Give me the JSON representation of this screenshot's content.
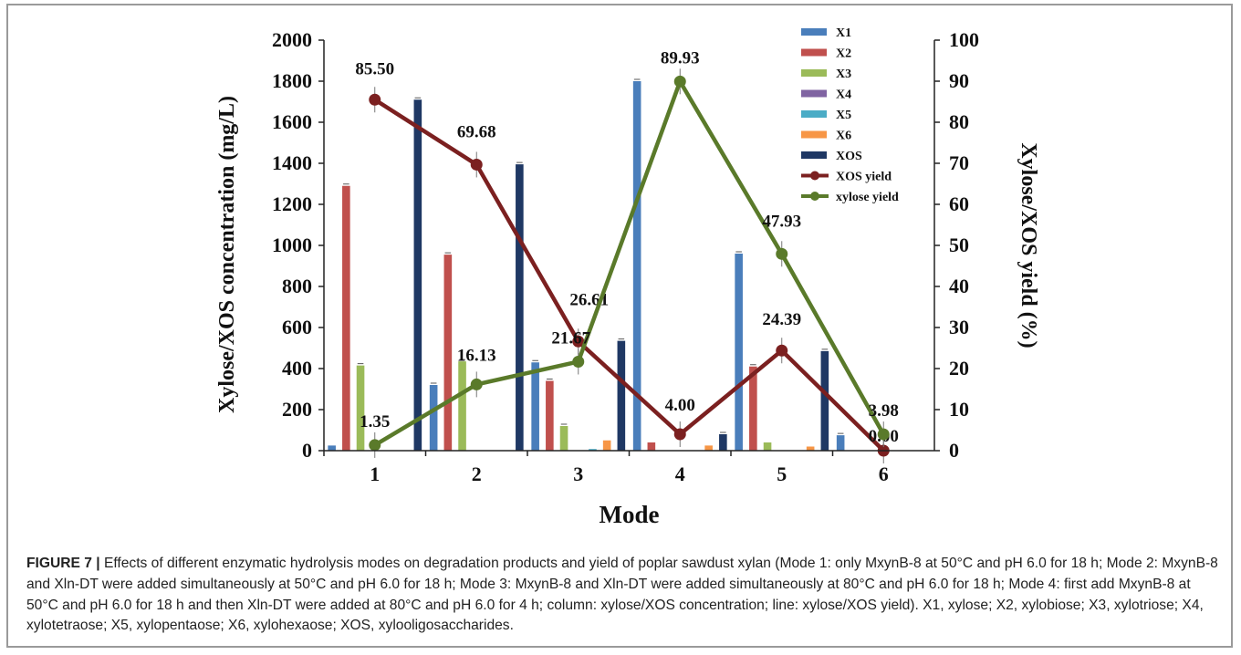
{
  "caption": {
    "label": "FIGURE 7 |",
    "text": " Effects of different enzymatic hydrolysis modes on degradation products and yield of poplar sawdust xylan (Mode 1: only MxynB-8 at 50°C and pH 6.0 for 18 h; Mode 2: MxynB-8 and Xln-DT were added simultaneously at 50°C and pH 6.0 for 18 h; Mode 3: MxynB-8 and Xln-DT were added simultaneously at 80°C and pH 6.0 for 18 h; Mode 4: first add MxynB-8 at 50°C and pH 6.0 for 18 h and then Xln-DT were added at 80°C and pH 6.0 for 4 h; column: xylose/XOS concentration; line: xylose/XOS yield). X1, xylose; X2, xylobiose; X3, xylotriose; X4, xylotetraose; X5, xylopentaose; X6, xylohexaose; XOS, xylooligosaccharides."
  },
  "chart_data": {
    "type": "bar",
    "categories": [
      "1",
      "2",
      "3",
      "4",
      "5",
      "6"
    ],
    "xlabel": "Mode",
    "ylabel": "Xylose/XOS concentration (mg/L)",
    "y2label": "Xylose/XOS yield (%)",
    "ylim": [
      0,
      2000
    ],
    "y2lim": [
      0,
      100
    ],
    "yticks": [
      "0",
      "200",
      "400",
      "600",
      "800",
      "1000",
      "1200",
      "1400",
      "1600",
      "1800",
      "2000"
    ],
    "y2ticks": [
      "0",
      "10",
      "20",
      "30",
      "40",
      "50",
      "60",
      "70",
      "80",
      "90",
      "100"
    ],
    "legend_position": "top-right",
    "series": [
      {
        "name": "X1",
        "color": "#4a7ebb",
        "values": [
          25,
          320,
          430,
          1800,
          960,
          75
        ]
      },
      {
        "name": "X2",
        "color": "#c0504d",
        "values": [
          1290,
          955,
          340,
          40,
          410,
          0
        ]
      },
      {
        "name": "X3",
        "color": "#9bbb59",
        "values": [
          415,
          435,
          120,
          0,
          40,
          0
        ]
      },
      {
        "name": "X4",
        "color": "#8064a2",
        "values": [
          0,
          0,
          0,
          0,
          0,
          0
        ]
      },
      {
        "name": "X5",
        "color": "#4bacc6",
        "values": [
          0,
          0,
          8,
          0,
          0,
          0
        ]
      },
      {
        "name": "X6",
        "color": "#f79646",
        "values": [
          0,
          0,
          50,
          25,
          20,
          0
        ]
      },
      {
        "name": "XOS",
        "color": "#1f3864",
        "values": [
          1710,
          1395,
          535,
          80,
          485,
          0
        ]
      }
    ],
    "lines": [
      {
        "name": "XOS yield",
        "color": "#7b2020",
        "values": [
          85.5,
          69.68,
          26.61,
          4.0,
          24.39,
          0.0
        ],
        "labels": [
          "85.50",
          "69.68",
          "26.61",
          "4.00",
          "24.39",
          "0.00"
        ]
      },
      {
        "name": "xylose yield",
        "color": "#5a7a2a",
        "values": [
          1.35,
          16.13,
          21.67,
          89.93,
          47.93,
          3.98
        ],
        "labels": [
          "1.35",
          "16.13",
          "21.67",
          "89.93",
          "47.93",
          "3.98"
        ]
      }
    ]
  }
}
